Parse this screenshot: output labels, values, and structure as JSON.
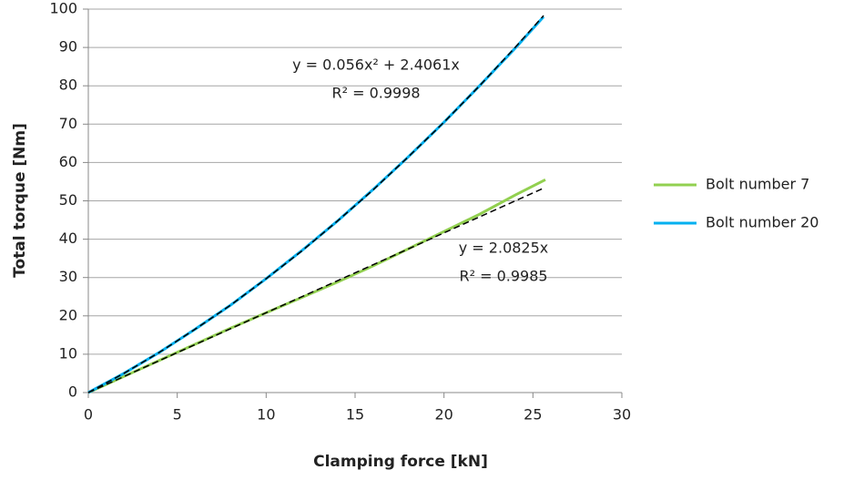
{
  "chart_data": {
    "type": "line",
    "xlabel": "Clamping force [kN]",
    "ylabel": "Total torque [Nm]",
    "xlim": [
      0,
      30
    ],
    "xticks": [
      0,
      5,
      10,
      15,
      20,
      25,
      30
    ],
    "ylim": [
      0,
      100
    ],
    "yticks": [
      0,
      10,
      20,
      30,
      40,
      50,
      60,
      70,
      80,
      90,
      100
    ],
    "grid": true,
    "legend": "right",
    "series": [
      {
        "name": "Bolt number 7",
        "color": "#92d050",
        "x": [
          0,
          2,
          4,
          6,
          8,
          10,
          12,
          14,
          16,
          18,
          20,
          22,
          24,
          25.7
        ],
        "values": [
          0,
          4.2,
          8.4,
          12.6,
          16.8,
          20.8,
          24.8,
          28.8,
          33.0,
          37.5,
          42.0,
          46.5,
          51.5,
          55.5
        ]
      },
      {
        "name": "Bolt number 20",
        "color": "#00b0f0",
        "x": [
          0,
          2,
          4,
          6,
          8,
          10,
          12,
          14,
          16,
          18,
          20,
          22,
          24,
          25.6
        ],
        "values": [
          0,
          5.0,
          10.5,
          16.5,
          22.8,
          29.7,
          37.0,
          44.7,
          52.9,
          61.5,
          70.5,
          80.0,
          89.8,
          98.0
        ]
      }
    ],
    "trendlines": [
      {
        "equation": "y = 0.056x² + 2.4061x",
        "r2": "R² = 0.9998",
        "color": "#000000",
        "x": [
          0,
          2,
          4,
          6,
          8,
          10,
          12,
          14,
          16,
          18,
          20,
          22,
          24,
          25.6
        ],
        "values": [
          0,
          5.0,
          10.5,
          16.5,
          22.8,
          29.7,
          36.9,
          44.7,
          52.8,
          61.5,
          70.5,
          80.0,
          90.0,
          98.3
        ]
      },
      {
        "equation": "y = 2.0825x",
        "r2": "R² = 0.9985",
        "color": "#000000",
        "x": [
          0,
          25.6
        ],
        "values": [
          0,
          53.3
        ]
      }
    ]
  }
}
